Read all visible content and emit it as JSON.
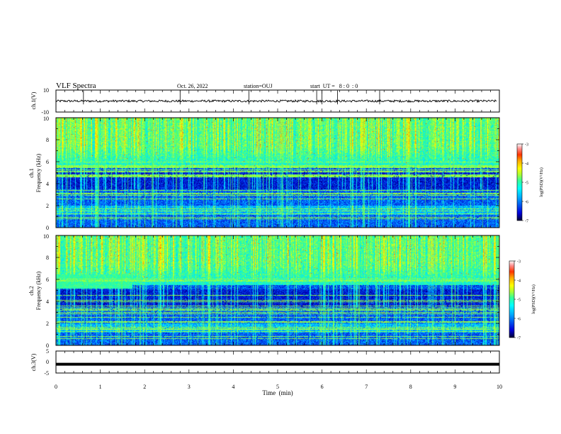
{
  "chart_data": {
    "type": "heatmap",
    "title": "VLF Spectra",
    "date": "Oct. 26, 2022",
    "station": "station=OUJ",
    "start_ut": "start  UT =   8 : 0  : 0",
    "xlabel": "Time  (min)",
    "xlim": [
      0,
      10
    ],
    "x_ticks": [
      "0",
      "1",
      "2",
      "3",
      "4",
      "5",
      "6",
      "7",
      "8",
      "9",
      "10"
    ],
    "panels": [
      {
        "id": "ch1-waveform",
        "type": "line",
        "ylabel": "ch.1(V)",
        "ylim": [
          -10,
          10
        ],
        "y_ticks": [
          "10",
          "-10"
        ],
        "baseline": 0,
        "noise_amplitude": 1,
        "spikes_min": [
          0.62,
          2.8,
          4.35,
          5.88,
          6.0,
          6.35,
          7.3
        ]
      },
      {
        "id": "ch1-spectrogram",
        "type": "heatmap",
        "ylabel_top": "ch.1",
        "ylabel": "Frequency  (kHz)",
        "ylim": [
          0,
          10
        ],
        "y_ticks": [
          "0",
          "2",
          "4",
          "6",
          "8",
          "10"
        ],
        "colorbar": {
          "label": "log(PSD)(V²/Hz)",
          "range": [
            -7,
            -3
          ],
          "ticks": [
            "-3",
            "-4",
            "-5",
            "-6",
            "-7"
          ]
        },
        "quiet_band_khz": [
          3.5,
          5.5
        ]
      },
      {
        "id": "ch2-spectrogram",
        "type": "heatmap",
        "ylabel_top": "ch.2",
        "ylabel": "Frequency  (kHz)",
        "ylim": [
          0,
          10
        ],
        "y_ticks": [
          "0",
          "2",
          "4",
          "6",
          "8",
          "10"
        ],
        "colorbar": {
          "label": "log(PSD)(V²/Hz)",
          "range": [
            -7,
            -3
          ],
          "ticks": [
            "-3",
            "-4",
            "-5",
            "-6",
            "-7"
          ]
        },
        "band_6khz_min": [
          0,
          1.7
        ]
      },
      {
        "id": "ch3-waveform",
        "type": "line",
        "ylabel": "ch.3(V)",
        "ylim": [
          -5,
          5
        ],
        "y_ticks": [
          "5",
          "0",
          "-5"
        ],
        "baseline": -1
      }
    ],
    "colormap": [
      "#000033",
      "#00007a",
      "#0000dd",
      "#0050ff",
      "#00a8ff",
      "#00ffff",
      "#33ff99",
      "#aaff33",
      "#ffff00",
      "#ffaa00",
      "#ff3300",
      "#ff6666",
      "#ffc0c0",
      "#ffffff"
    ]
  }
}
